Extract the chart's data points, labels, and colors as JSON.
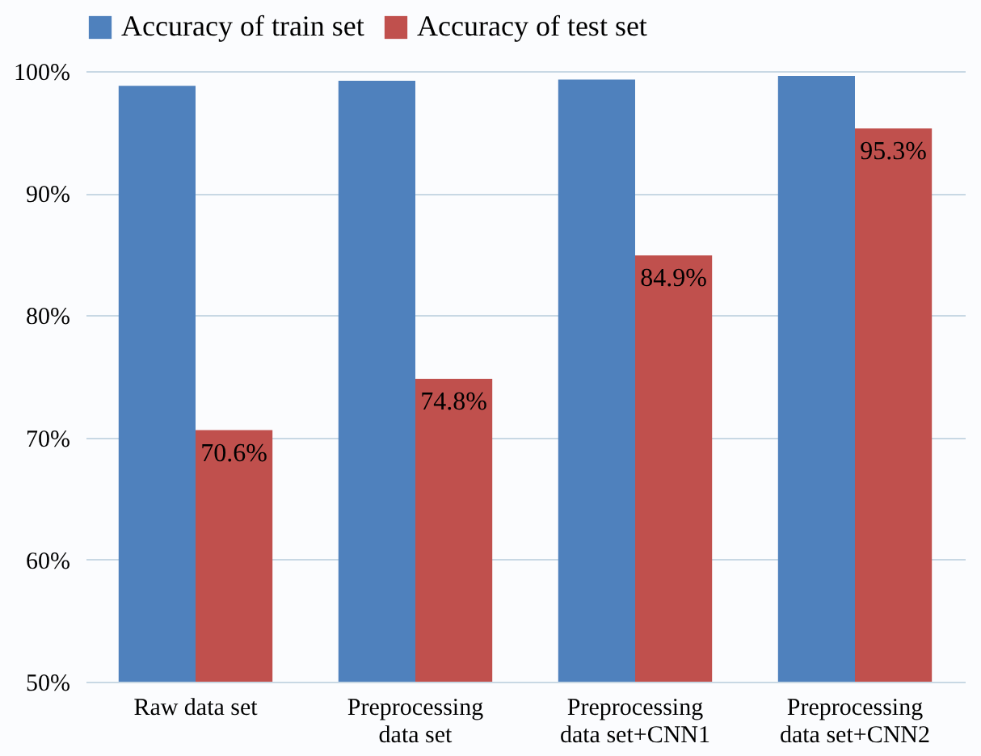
{
  "chart_data": {
    "type": "bar",
    "categories": [
      "Raw data set",
      "Preprocessing data set",
      "Preprocessing data set+CNN1",
      "Preprocessing data set+CNN2"
    ],
    "series": [
      {
        "name": "Accuracy of train set",
        "color": "#4f81bd",
        "values": [
          98.8,
          99.2,
          99.3,
          99.6
        ]
      },
      {
        "name": "Accuracy of test set",
        "color": "#c0504d",
        "values": [
          70.6,
          74.8,
          84.9,
          95.3
        ],
        "value_labels": [
          "70.6%",
          "74.8%",
          "84.9%",
          "95.3%"
        ]
      }
    ],
    "ylim": [
      50,
      100
    ],
    "yticks": [
      {
        "value": 50,
        "label": "50%"
      },
      {
        "value": 60,
        "label": "60%"
      },
      {
        "value": 70,
        "label": "70%"
      },
      {
        "value": 80,
        "label": "80%"
      },
      {
        "value": 90,
        "label": "90%"
      },
      {
        "value": 100,
        "label": "100%"
      }
    ],
    "grid": "y",
    "legend": "top"
  }
}
